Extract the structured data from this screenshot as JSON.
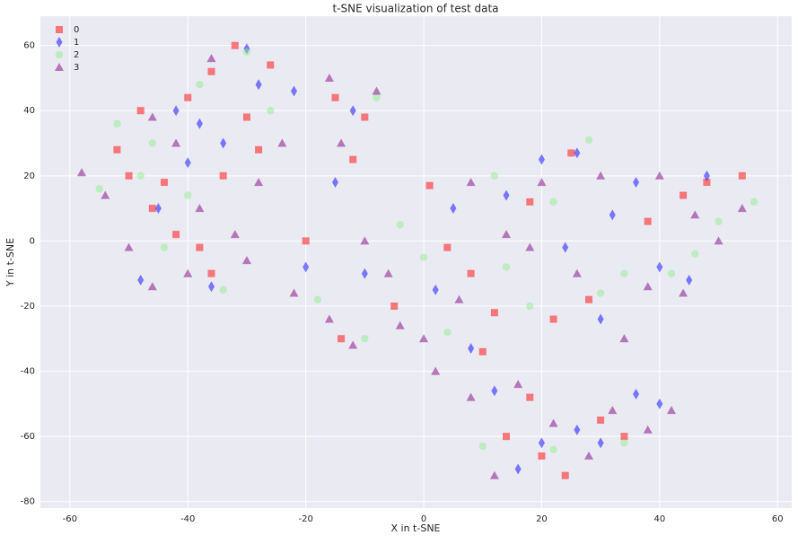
{
  "chart_data": {
    "type": "scatter",
    "title": "t-SNE visualization of test data",
    "x_label": "X in t-SNE",
    "y_label": "Y in t-SNE",
    "xlim": [
      -65,
      62.4
    ],
    "ylim": [
      -82,
      69
    ],
    "xticks": [
      -60,
      -40,
      -20,
      0,
      20,
      40,
      60
    ],
    "yticks": [
      -80,
      -60,
      -40,
      -20,
      0,
      20,
      40,
      60
    ],
    "grid": true,
    "legend": "upper left",
    "series": [
      {
        "name": "0",
        "color": "#ff0000",
        "marker": "square",
        "x": [
          -52,
          -48,
          -44,
          -40,
          -36,
          -32,
          -30,
          -28,
          -46,
          -38,
          -36,
          -42,
          -50,
          -34,
          -26,
          -15,
          -12,
          -10,
          1,
          4,
          8,
          12,
          10,
          -14,
          -5,
          18,
          22,
          28,
          38,
          48,
          54,
          25,
          14,
          20,
          24,
          30,
          18,
          34,
          44,
          -20
        ],
        "y": [
          28,
          40,
          18,
          44,
          52,
          60,
          38,
          28,
          10,
          -2,
          -10,
          2,
          20,
          20,
          54,
          44,
          25,
          38,
          17,
          -2,
          -10,
          -22,
          -34,
          -30,
          -20,
          12,
          -24,
          -18,
          6,
          18,
          20,
          27,
          -60,
          -66,
          -72,
          -55,
          -48,
          -60,
          14,
          0
        ]
      },
      {
        "name": "1",
        "color": "#0000ff",
        "marker": "diamond",
        "x": [
          -45,
          -40,
          -38,
          -30,
          -28,
          -34,
          -48,
          -36,
          -20,
          -22,
          -12,
          -10,
          2,
          8,
          14,
          20,
          24,
          30,
          26,
          36,
          40,
          45,
          48,
          12,
          20,
          26,
          36,
          40,
          16,
          30,
          -15,
          5,
          32,
          -42
        ],
        "y": [
          10,
          24,
          36,
          59,
          48,
          30,
          -12,
          -14,
          -8,
          46,
          40,
          -10,
          -15,
          -33,
          14,
          25,
          -2,
          -24,
          27,
          18,
          -8,
          -12,
          20,
          -46,
          -62,
          -58,
          -47,
          -50,
          -70,
          -62,
          18,
          10,
          8,
          40
        ]
      },
      {
        "name": "2",
        "color": "#90ee90",
        "marker": "circle",
        "x": [
          -55,
          -52,
          -46,
          -40,
          -44,
          -38,
          -34,
          -30,
          -48,
          -26,
          -18,
          -10,
          -4,
          4,
          12,
          14,
          22,
          28,
          34,
          42,
          50,
          56,
          10,
          22,
          34,
          -8,
          0,
          18,
          30,
          46
        ],
        "y": [
          16,
          36,
          30,
          14,
          -2,
          48,
          -15,
          58,
          20,
          40,
          -18,
          -30,
          5,
          -28,
          20,
          -8,
          12,
          31,
          -10,
          -10,
          6,
          12,
          -63,
          -64,
          -62,
          44,
          -5,
          -20,
          -16,
          -4
        ]
      },
      {
        "name": "3",
        "color": "#800080",
        "marker": "triangle",
        "x": [
          -58,
          -54,
          -50,
          -46,
          -42,
          -38,
          -36,
          -32,
          -30,
          -28,
          -24,
          -40,
          -46,
          -16,
          -14,
          -8,
          -22,
          -16,
          -12,
          -6,
          0,
          6,
          -4,
          8,
          14,
          18,
          20,
          26,
          30,
          34,
          38,
          44,
          50,
          54,
          40,
          46,
          8,
          16,
          22,
          28,
          32,
          38,
          42,
          12,
          -10,
          2
        ],
        "y": [
          21,
          14,
          -2,
          38,
          30,
          10,
          56,
          2,
          -6,
          18,
          30,
          -10,
          -14,
          50,
          30,
          46,
          -16,
          -24,
          -32,
          -10,
          -30,
          -18,
          -26,
          18,
          2,
          -2,
          18,
          -10,
          20,
          -30,
          -14,
          -16,
          0,
          10,
          20,
          8,
          -48,
          -44,
          -56,
          -66,
          -52,
          -58,
          -52,
          -72,
          0,
          -40
        ]
      }
    ]
  }
}
